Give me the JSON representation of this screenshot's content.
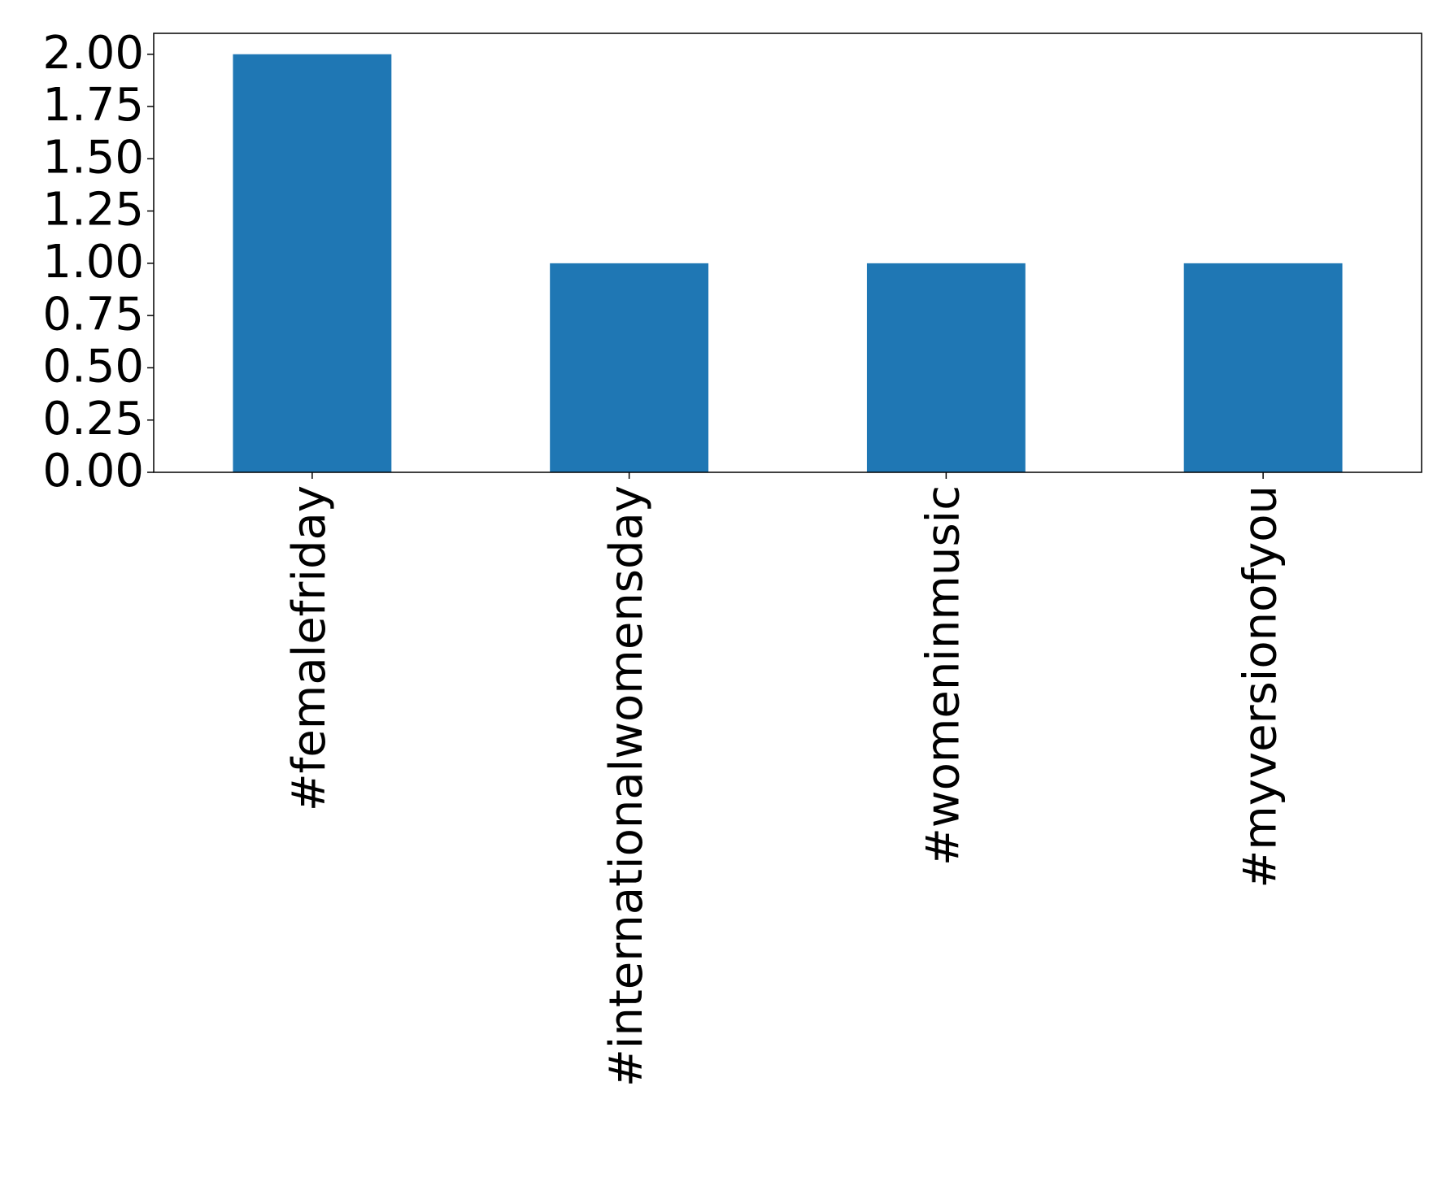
{
  "chart_data": {
    "type": "bar",
    "categories": [
      "#femalefriday",
      "#internationalwomensday",
      "#womeninmusic",
      "#myversionofyou"
    ],
    "values": [
      2,
      1,
      1,
      1
    ],
    "color": "#1f77b4",
    "ylim": [
      0,
      2.1
    ],
    "yticks": [
      {
        "value": 0,
        "label": "0.00"
      },
      {
        "value": 0.25,
        "label": "0.25"
      },
      {
        "value": 0.5,
        "label": "0.50"
      },
      {
        "value": 0.75,
        "label": "0.75"
      },
      {
        "value": 1,
        "label": "1.00"
      },
      {
        "value": 1.25,
        "label": "1.25"
      },
      {
        "value": 1.5,
        "label": "1.50"
      },
      {
        "value": 1.75,
        "label": "1.75"
      },
      {
        "value": 2,
        "label": "2.00"
      }
    ],
    "grid": false
  }
}
